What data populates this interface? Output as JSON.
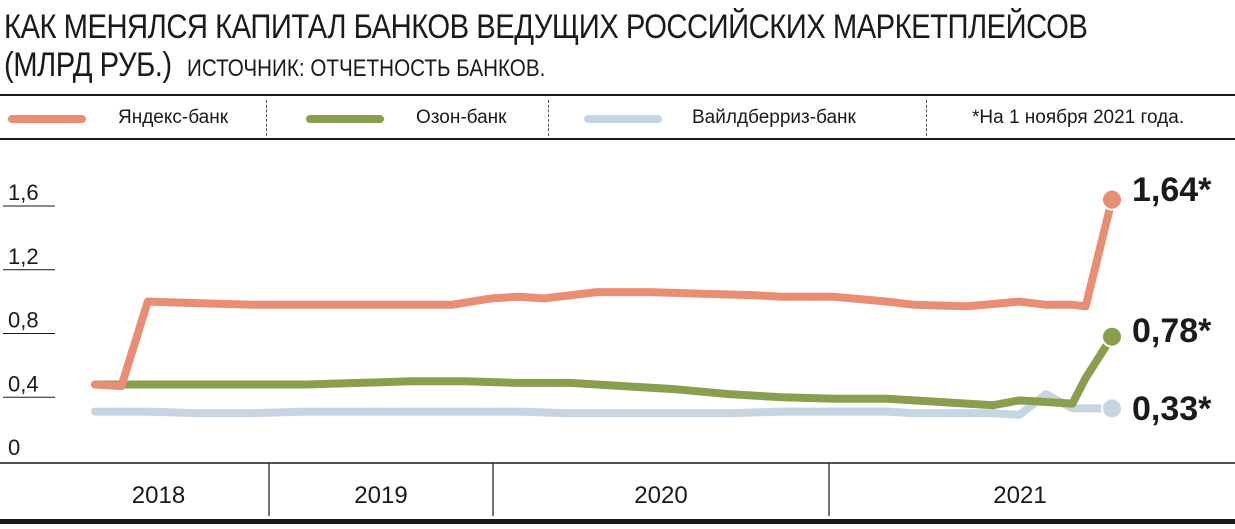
{
  "header": {
    "title_line1": "КАК МЕНЯЛСЯ КАПИТАЛ БАНКОВ ВЕДУЩИХ РОССИЙСКИХ МАРКЕТПЛЕЙСОВ",
    "title_line2": "(МЛРД РУБ.)",
    "source": "ИСТОЧНИК: ОТЧЕТНОСТЬ БАНКОВ."
  },
  "legend": {
    "items": [
      {
        "label": "Яндекс-банк",
        "color": "#e98d74"
      },
      {
        "label": "Озон-банк",
        "color": "#8a9f4e"
      },
      {
        "label": "Вайлдберриз-банк",
        "color": "#c7d4e2"
      }
    ],
    "note": "*На 1 ноября 2021 года."
  },
  "chart_data": {
    "type": "line",
    "title": "КАК МЕНЯЛСЯ КАПИТАЛ БАНКОВ ВЕДУЩИХ РОССИЙСКИХ МАРКЕТПЛЕЙСОВ (МЛРД РУБ.)",
    "ylim": [
      0,
      1.6
    ],
    "yticks": [
      0,
      0.4,
      0.8,
      1.2,
      1.6
    ],
    "ytick_labels": [
      "0",
      "0,4",
      "0,8",
      "1,2",
      "1,6"
    ],
    "years": [
      "2018",
      "2019",
      "2020",
      "2021"
    ],
    "x_start": 2018.0,
    "x_end": 2021.85,
    "series": [
      {
        "name": "Яндекс-банк",
        "color": "#e98d74",
        "end_label": "1,64*",
        "x": [
          2018.0,
          2018.1,
          2018.2,
          2018.4,
          2018.6,
          2018.8,
          2019.0,
          2019.2,
          2019.35,
          2019.5,
          2019.6,
          2019.7,
          2019.9,
          2020.1,
          2020.3,
          2020.5,
          2020.6,
          2020.8,
          2021.0,
          2021.1,
          2021.3,
          2021.5,
          2021.6,
          2021.7,
          2021.75,
          2021.85
        ],
        "values": [
          0.48,
          0.47,
          1.0,
          0.99,
          0.98,
          0.98,
          0.98,
          0.98,
          0.98,
          1.02,
          1.03,
          1.02,
          1.06,
          1.06,
          1.05,
          1.04,
          1.03,
          1.03,
          1.0,
          0.98,
          0.97,
          1.0,
          0.98,
          0.98,
          0.97,
          1.64
        ]
      },
      {
        "name": "Озон-банк",
        "color": "#8a9f4e",
        "end_label": "0,78*",
        "x": [
          2018.0,
          2018.2,
          2018.4,
          2018.6,
          2018.8,
          2019.0,
          2019.2,
          2019.4,
          2019.6,
          2019.8,
          2020.0,
          2020.2,
          2020.4,
          2020.6,
          2020.8,
          2021.0,
          2021.2,
          2021.3,
          2021.4,
          2021.5,
          2021.6,
          2021.7,
          2021.75,
          2021.85
        ],
        "values": [
          0.48,
          0.48,
          0.48,
          0.48,
          0.48,
          0.49,
          0.5,
          0.5,
          0.49,
          0.49,
          0.47,
          0.45,
          0.42,
          0.4,
          0.39,
          0.39,
          0.37,
          0.36,
          0.35,
          0.38,
          0.37,
          0.36,
          0.52,
          0.78
        ]
      },
      {
        "name": "Вайлдберриз-банк",
        "color": "#c7d4e2",
        "end_label": "0,33*",
        "x": [
          2018.0,
          2018.2,
          2018.4,
          2018.6,
          2018.8,
          2019.0,
          2019.2,
          2019.4,
          2019.6,
          2019.8,
          2020.0,
          2020.2,
          2020.4,
          2020.6,
          2020.8,
          2021.0,
          2021.1,
          2021.2,
          2021.3,
          2021.4,
          2021.5,
          2021.6,
          2021.7,
          2021.85
        ],
        "values": [
          0.31,
          0.31,
          0.3,
          0.3,
          0.31,
          0.31,
          0.31,
          0.31,
          0.31,
          0.3,
          0.3,
          0.3,
          0.3,
          0.31,
          0.31,
          0.31,
          0.3,
          0.3,
          0.3,
          0.3,
          0.29,
          0.42,
          0.33,
          0.33
        ]
      }
    ]
  }
}
